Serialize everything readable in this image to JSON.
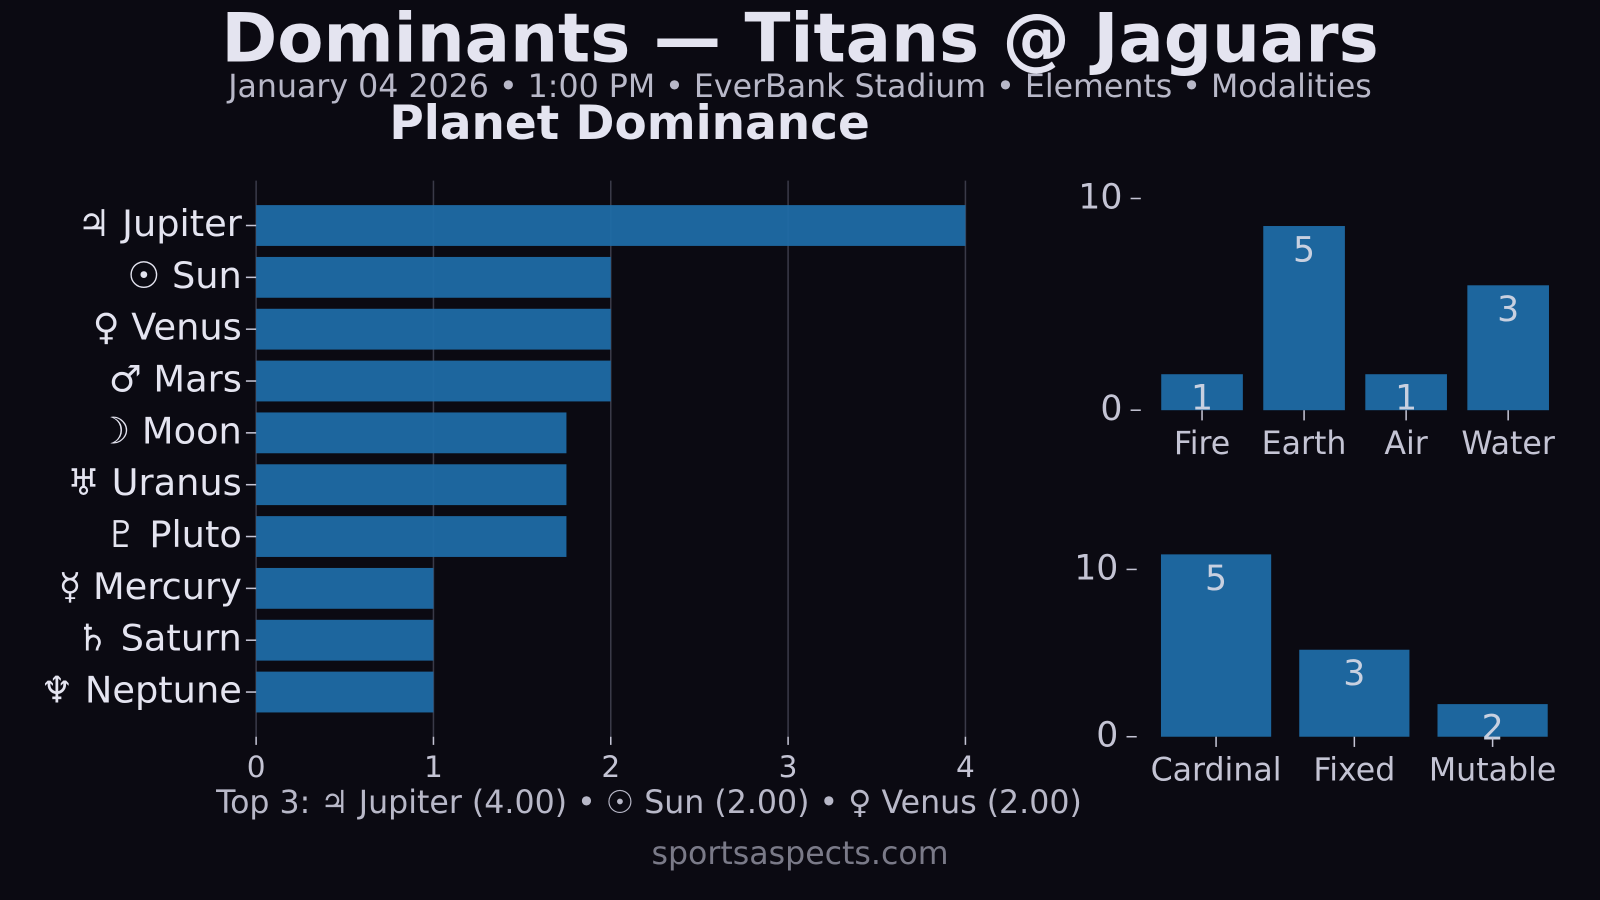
{
  "title": "Dominants — Titans @ Jaguars",
  "subtitle": "January 04 2026 • 1:00 PM • EverBank Stadium • Elements • Modalities",
  "footer": "Top 3: ♃ Jupiter (4.00) • ☉ Sun (2.00) • ♀ Venus (2.00)",
  "source": "sportsaspects.com",
  "chart_data": [
    {
      "type": "hbar",
      "title": "Planet Dominance",
      "categories": [
        "♃ Jupiter",
        "☉ Sun",
        "♀ Venus",
        "♂ Mars",
        "☽ Moon",
        "♅ Uranus",
        "♇ Pluto",
        "☿ Mercury",
        "♄ Saturn",
        "♆ Neptune"
      ],
      "values": [
        4,
        2,
        2,
        2,
        1.75,
        1.75,
        1.75,
        1,
        1,
        1
      ],
      "color": "#1f6ca6",
      "xlim": [
        0,
        4.5
      ],
      "xticks": [
        0,
        1,
        2,
        3,
        4
      ],
      "grid": true
    },
    {
      "type": "bar",
      "categories": [
        "Fire",
        "Earth",
        "Air",
        "Water"
      ],
      "values": [
        1.7,
        8.7,
        1.7,
        5.9
      ],
      "counts": [
        1,
        5,
        1,
        3
      ],
      "color": "#1f6ca6",
      "ylim": [
        0,
        10.7
      ],
      "yticks": [
        0,
        10
      ]
    },
    {
      "type": "bar",
      "categories": [
        "Cardinal",
        "Fixed",
        "Mutable"
      ],
      "values": [
        10.9,
        5.2,
        1.95
      ],
      "counts": [
        5,
        3,
        2
      ],
      "color": "#1f6ca6",
      "ylim": [
        0,
        11.1
      ],
      "yticks": [
        0,
        10
      ]
    }
  ]
}
